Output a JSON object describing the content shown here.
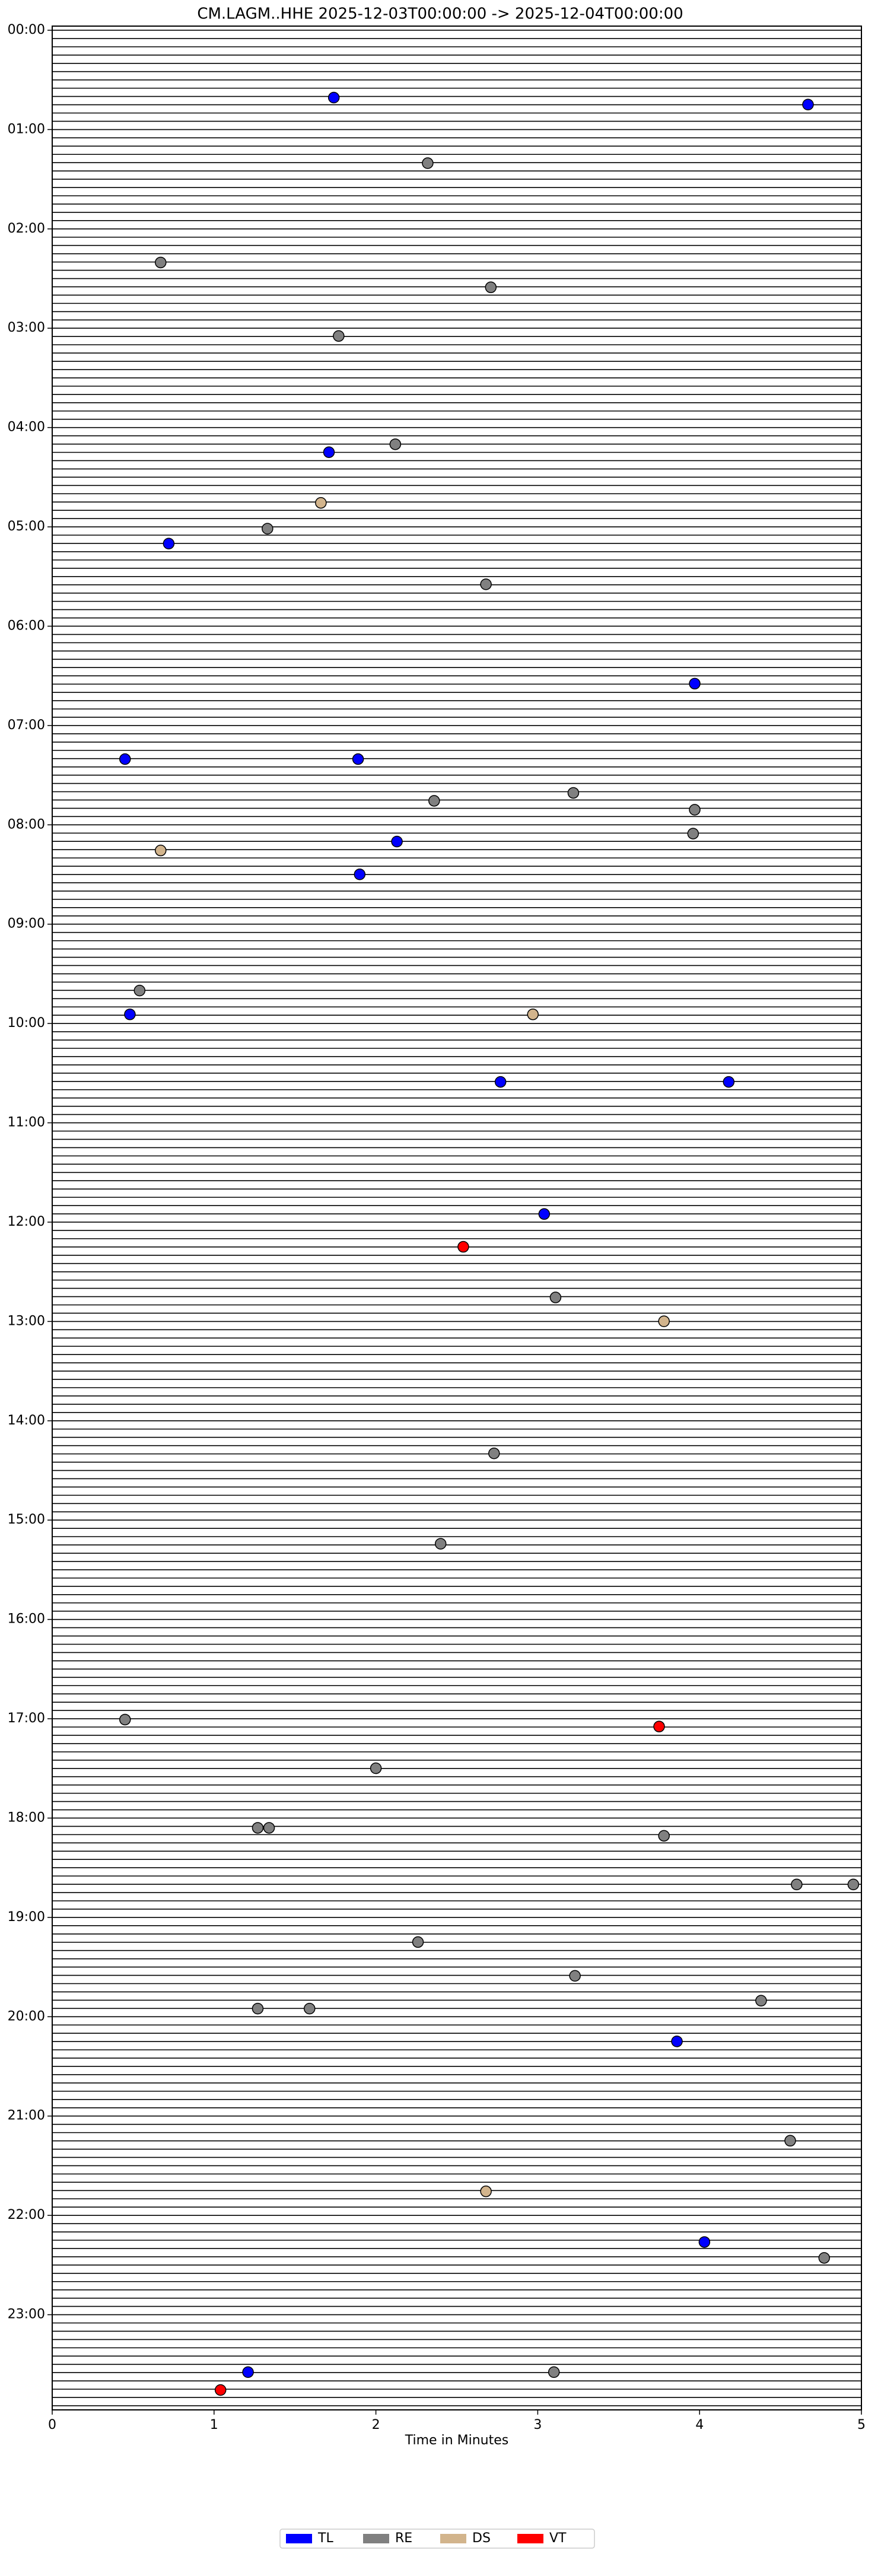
{
  "chart_data": {
    "type": "scatter",
    "title": "CM.LAGM..HHE  2025-12-03T00:00:00 -> 2025-12-04T00:00:00",
    "x_label": "Time in Minutes",
    "xlim": [
      0,
      5
    ],
    "xticks": [
      0,
      1,
      2,
      3,
      4,
      5
    ],
    "ylim": [
      0,
      24
    ],
    "y_inverted": true,
    "yticks": [
      {
        "value": 0,
        "label": "00:00"
      },
      {
        "value": 1,
        "label": "01:00"
      },
      {
        "value": 2,
        "label": "02:00"
      },
      {
        "value": 3,
        "label": "03:00"
      },
      {
        "value": 4,
        "label": "04:00"
      },
      {
        "value": 5,
        "label": "05:00"
      },
      {
        "value": 6,
        "label": "06:00"
      },
      {
        "value": 7,
        "label": "07:00"
      },
      {
        "value": 8,
        "label": "08:00"
      },
      {
        "value": 9,
        "label": "09:00"
      },
      {
        "value": 10,
        "label": "10:00"
      },
      {
        "value": 11,
        "label": "11:00"
      },
      {
        "value": 12,
        "label": "12:00"
      },
      {
        "value": 13,
        "label": "13:00"
      },
      {
        "value": 14,
        "label": "14:00"
      },
      {
        "value": 15,
        "label": "15:00"
      },
      {
        "value": 16,
        "label": "16:00"
      },
      {
        "value": 17,
        "label": "17:00"
      },
      {
        "value": 18,
        "label": "18:00"
      },
      {
        "value": 19,
        "label": "19:00"
      },
      {
        "value": 20,
        "label": "20:00"
      },
      {
        "value": 21,
        "label": "21:00"
      },
      {
        "value": 22,
        "label": "22:00"
      },
      {
        "value": 23,
        "label": "23:00"
      }
    ],
    "legend_position": "bottom",
    "series": [
      {
        "name": "TL",
        "color": "#0000ff",
        "x": [
          1.74,
          4.67,
          1.71,
          0.72,
          3.97,
          0.45,
          1.89,
          2.13,
          1.9,
          0.48,
          2.77,
          4.18,
          3.04,
          3.86,
          4.03,
          1.21
        ],
        "values": [
          0.72,
          0.79,
          4.29,
          5.21,
          6.62,
          7.38,
          7.38,
          8.21,
          8.54,
          9.95,
          10.63,
          10.63,
          11.96,
          20.29,
          22.31,
          23.62
        ]
      },
      {
        "name": "RE",
        "color": "#808080",
        "x": [
          2.32,
          0.67,
          2.71,
          1.77,
          2.12,
          1.33,
          2.68,
          2.36,
          3.22,
          3.97,
          3.96,
          0.54,
          3.11,
          2.73,
          2.4,
          0.45,
          2.0,
          1.27,
          1.34,
          3.78,
          4.6,
          4.95,
          2.26,
          3.23,
          4.38,
          1.27,
          1.59,
          4.56,
          4.77,
          3.1
        ],
        "values": [
          1.38,
          2.38,
          2.63,
          3.12,
          4.21,
          5.06,
          5.62,
          7.8,
          7.72,
          7.89,
          8.13,
          9.71,
          12.8,
          14.37,
          15.28,
          17.05,
          17.54,
          18.14,
          18.14,
          18.22,
          18.71,
          18.71,
          19.29,
          19.63,
          19.88,
          19.96,
          19.96,
          21.29,
          22.47,
          23.62
        ]
      },
      {
        "name": "DS",
        "color": "#d2b48c",
        "x": [
          1.66,
          0.67,
          2.97,
          3.78,
          2.68
        ],
        "values": [
          4.8,
          8.3,
          9.95,
          13.04,
          21.8
        ]
      },
      {
        "name": "VT",
        "color": "#ff0000",
        "x": [
          2.54,
          3.75,
          1.04
        ],
        "values": [
          12.29,
          17.12,
          23.8
        ]
      }
    ]
  }
}
